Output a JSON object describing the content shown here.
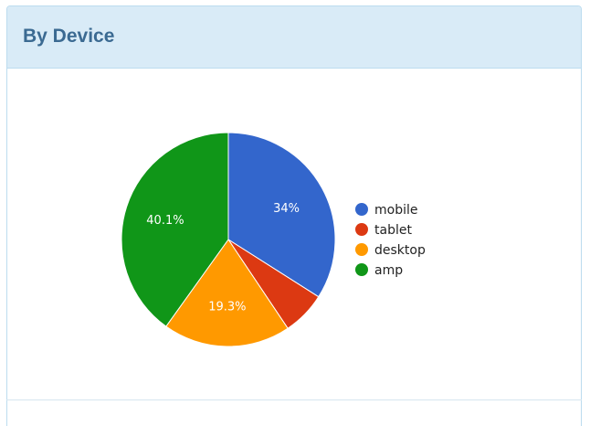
{
  "panel": {
    "title": "By Device"
  },
  "chart_data": {
    "type": "pie",
    "categories": [
      "mobile",
      "tablet",
      "desktop",
      "amp"
    ],
    "values": [
      34,
      6.6,
      19.3,
      40.1
    ],
    "labels": [
      "34%",
      "",
      "19.3%",
      "40.1%"
    ],
    "colors": [
      "#3366cc",
      "#dc3912",
      "#ff9900",
      "#109618"
    ],
    "legend_position": "right",
    "start_angle_deg": 0,
    "direction": "clockwise"
  }
}
